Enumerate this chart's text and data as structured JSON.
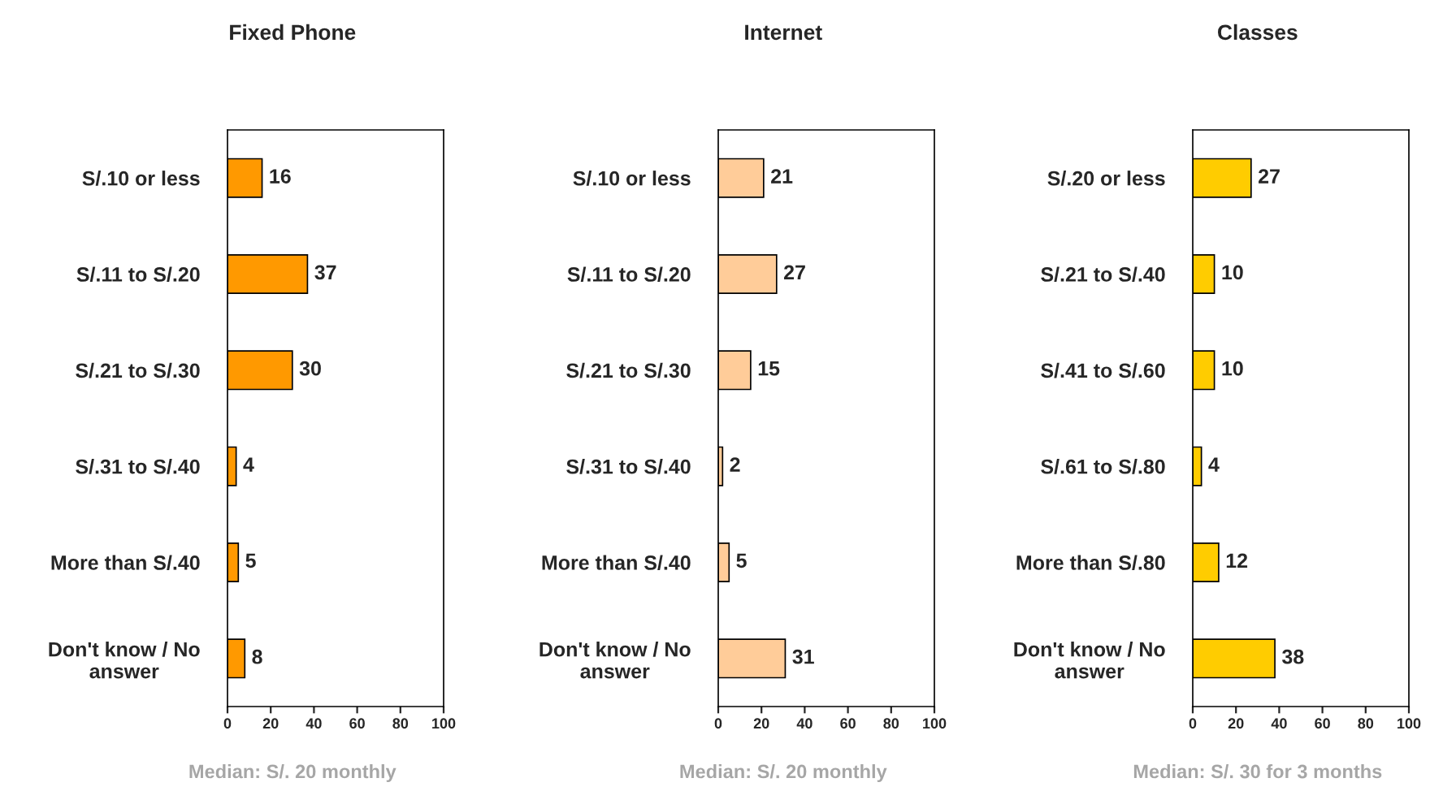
{
  "chart_data": [
    {
      "type": "bar",
      "orientation": "horizontal",
      "title": "Fixed Phone",
      "categories": [
        "S/.10 or less",
        "S/.11 to S/.20",
        "S/.21 to S/.30",
        "S/.31 to S/.40",
        "More than S/.40",
        "Don't know / No answer"
      ],
      "values": [
        16,
        37,
        30,
        4,
        5,
        8
      ],
      "color": "#ff9900",
      "xlim": [
        0,
        100
      ],
      "xticks": [
        0,
        20,
        40,
        60,
        80,
        100
      ],
      "data_labels": true,
      "grid": false,
      "annotations": [
        "Median: S/. 20 monthly"
      ]
    },
    {
      "type": "bar",
      "orientation": "horizontal",
      "title": "Internet",
      "categories": [
        "S/.10 or less",
        "S/.11 to S/.20",
        "S/.21 to S/.30",
        "S/.31 to S/.40",
        "More than S/.40",
        "Don't know / No answer"
      ],
      "values": [
        21,
        27,
        15,
        2,
        5,
        31
      ],
      "color": "#ffcc99",
      "xlim": [
        0,
        100
      ],
      "xticks": [
        0,
        20,
        40,
        60,
        80,
        100
      ],
      "data_labels": true,
      "grid": false,
      "annotations": [
        "Median: S/. 20 monthly"
      ]
    },
    {
      "type": "bar",
      "orientation": "horizontal",
      "title": "Classes",
      "categories": [
        "S/.20 or less",
        "S/.21 to S/.40",
        "S/.41 to S/.60",
        "S/.61 to S/.80",
        "More than S/.80",
        "Don't know / No answer"
      ],
      "values": [
        27,
        10,
        10,
        4,
        12,
        38
      ],
      "color": "#ffcc00",
      "xlim": [
        0,
        100
      ],
      "xticks": [
        0,
        20,
        40,
        60,
        80,
        100
      ],
      "data_labels": true,
      "grid": false,
      "annotations": [
        "Median: S/. 30 for 3 months"
      ]
    }
  ]
}
